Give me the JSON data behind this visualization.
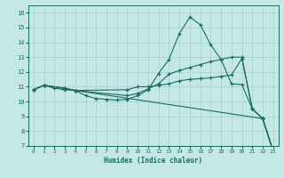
{
  "xlabel": "Humidex (Indice chaleur)",
  "bg_color": "#c5e8e5",
  "line_color": "#1a6b64",
  "grid_color": "#a8d5d0",
  "xlim": [
    -0.5,
    23.5
  ],
  "ylim": [
    7,
    16.5
  ],
  "yticks": [
    7,
    8,
    9,
    10,
    11,
    12,
    13,
    14,
    15,
    16
  ],
  "xticks": [
    0,
    1,
    2,
    3,
    4,
    5,
    6,
    7,
    8,
    9,
    10,
    11,
    12,
    13,
    14,
    15,
    16,
    17,
    18,
    19,
    20,
    21,
    22,
    23
  ],
  "lines": [
    {
      "x": [
        0,
        1,
        2,
        3,
        4,
        5,
        6,
        7,
        8,
        9,
        10,
        11,
        12,
        13,
        14,
        15,
        16,
        17,
        18,
        19,
        20,
        21,
        22,
        23
      ],
      "y": [
        10.8,
        11.1,
        10.9,
        10.8,
        10.75,
        10.4,
        10.2,
        10.15,
        10.1,
        10.15,
        10.4,
        10.8,
        11.9,
        12.85,
        14.6,
        15.7,
        15.2,
        13.85,
        12.85,
        11.2,
        11.15,
        9.5,
        8.85,
        6.65
      ]
    },
    {
      "x": [
        0,
        1,
        3,
        4,
        9,
        10,
        11,
        12,
        13,
        14,
        15,
        16,
        17,
        18,
        19,
        20,
        21,
        22,
        23
      ],
      "y": [
        10.8,
        11.1,
        10.9,
        10.75,
        10.8,
        11.0,
        11.0,
        11.1,
        11.2,
        11.4,
        11.5,
        11.55,
        11.6,
        11.7,
        11.8,
        12.9,
        9.5,
        8.85,
        6.65
      ]
    },
    {
      "x": [
        0,
        1,
        3,
        4,
        9,
        10,
        11,
        12,
        13,
        14,
        15,
        16,
        17,
        18,
        19,
        20,
        21,
        22,
        23
      ],
      "y": [
        10.8,
        11.1,
        10.9,
        10.75,
        10.4,
        10.55,
        10.85,
        11.2,
        11.85,
        12.1,
        12.3,
        12.5,
        12.7,
        12.85,
        13.0,
        13.0,
        9.5,
        8.85,
        6.65
      ]
    },
    {
      "x": [
        0,
        1,
        4,
        22,
        23
      ],
      "y": [
        10.8,
        11.1,
        10.75,
        8.85,
        6.65
      ]
    }
  ]
}
